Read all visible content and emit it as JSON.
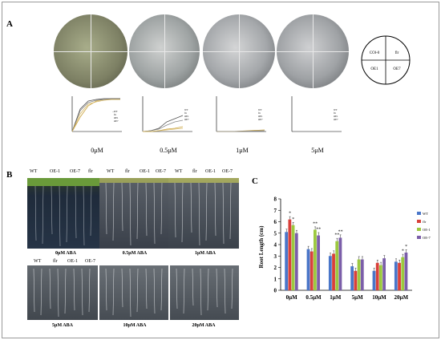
{
  "panels": {
    "a": "A",
    "b": "B",
    "c": "C"
  },
  "panel_a": {
    "conditions": [
      "0μM",
      "0.5μM",
      "1μM",
      "5μM"
    ],
    "layout_quadrants": [
      "COl-0",
      "flr",
      "OE1",
      "OE7"
    ],
    "mini_legend": [
      "WT",
      "flr",
      "OE1",
      "OE7"
    ]
  },
  "panel_b": {
    "top_headers": {
      "0": [
        "WT",
        "OE-1",
        "OE-7",
        "flr"
      ],
      "1": [
        "WT",
        "flr",
        "OE-1",
        "OE-7"
      ],
      "2": [
        "WT",
        "flr",
        "OE-1",
        "OE-7"
      ]
    },
    "bottom_headers": [
      "WT",
      "flr",
      "OE-1",
      "OE-7"
    ],
    "photo_labels": [
      "0μM ABA",
      "0.5μM ABA",
      "1μM ABA",
      "5μM ABA",
      "10μM ABA",
      "20μM ABA"
    ]
  },
  "colors": {
    "WT": "#4a76c9",
    "flr": "#d9403a",
    "OE-1": "#9cc93f",
    "OE-7": "#7b5ea9"
  },
  "chart_data": {
    "type": "bar",
    "categories": [
      "0μM",
      "0.5μM",
      "1μM",
      "5μM",
      "10μM",
      "20μM"
    ],
    "ylabel": "Root  Length (cm)",
    "ylim": [
      0,
      8
    ],
    "yticks": [
      "0",
      "1",
      "2",
      "3",
      "4",
      "5",
      "6",
      "7",
      "8"
    ],
    "series": [
      {
        "name": "WT",
        "values": [
          5.1,
          3.6,
          3.0,
          2.1,
          1.7,
          2.5
        ]
      },
      {
        "name": "flr",
        "values": [
          6.2,
          3.4,
          3.2,
          1.7,
          2.4,
          2.4
        ]
      },
      {
        "name": "OE-1",
        "values": [
          5.7,
          5.3,
          4.3,
          2.7,
          2.2,
          2.9
        ]
      },
      {
        "name": "OE-7",
        "values": [
          5.0,
          4.8,
          4.6,
          2.7,
          2.8,
          3.3
        ]
      }
    ],
    "annotations": [
      "*",
      "*",
      "**",
      "**",
      "**",
      "**",
      "*",
      "*"
    ],
    "legend_position": "right"
  }
}
